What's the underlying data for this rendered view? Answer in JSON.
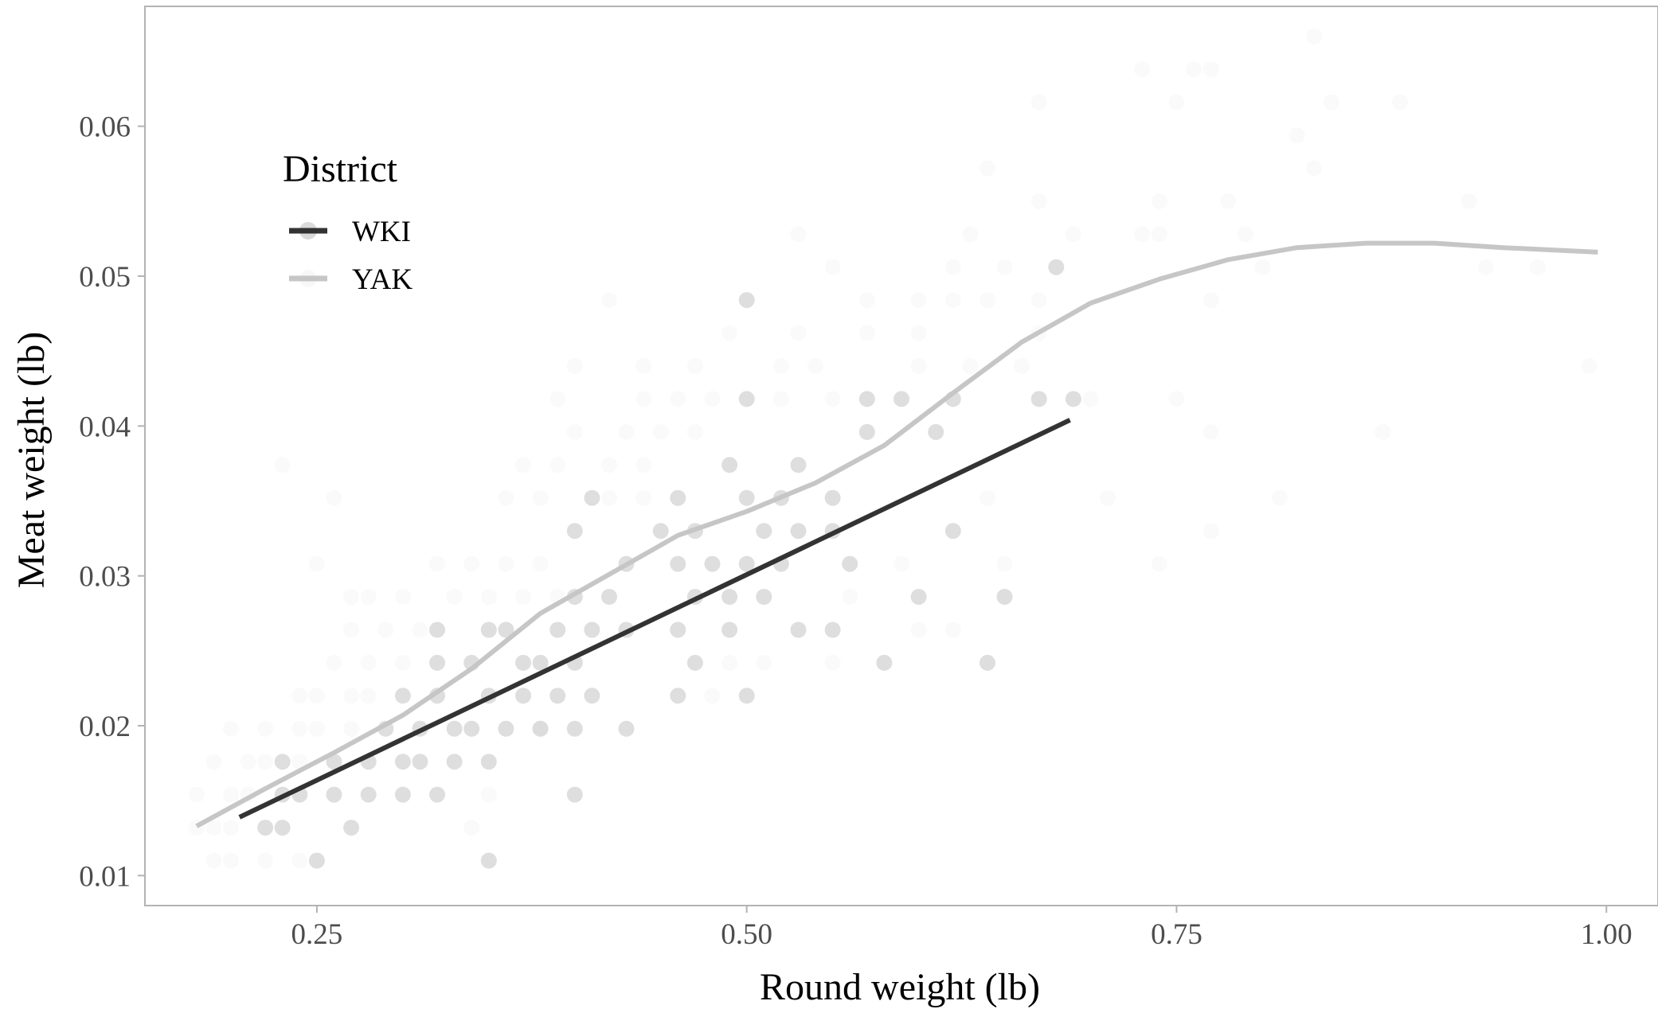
{
  "chart_data": {
    "type": "scatter",
    "xlabel": "Round weight (lb)",
    "ylabel": "Meat weight (lb)",
    "xlim": [
      0.15,
      1.03
    ],
    "ylim": [
      0.008,
      0.068
    ],
    "x_ticks": [
      0.25,
      0.5,
      0.75,
      1.0
    ],
    "x_tick_labels": [
      "0.25",
      "0.50",
      "0.75",
      "1.00"
    ],
    "y_ticks": [
      0.01,
      0.02,
      0.03,
      0.04,
      0.05,
      0.06
    ],
    "y_tick_labels": [
      "0.01",
      "0.02",
      "0.03",
      "0.04",
      "0.05",
      "0.06"
    ],
    "grid": false,
    "legend": {
      "title": "District",
      "position": "top-left"
    },
    "colors": {
      "WKI": "#333333",
      "YAK": "#c6c6c6"
    },
    "series": [
      {
        "name": "WKI",
        "points": [
          [
            0.22,
            0.0132
          ],
          [
            0.23,
            0.0132
          ],
          [
            0.25,
            0.011
          ],
          [
            0.27,
            0.0132
          ],
          [
            0.23,
            0.0154
          ],
          [
            0.24,
            0.0154
          ],
          [
            0.26,
            0.0154
          ],
          [
            0.28,
            0.0154
          ],
          [
            0.3,
            0.0154
          ],
          [
            0.32,
            0.0154
          ],
          [
            0.23,
            0.0176
          ],
          [
            0.26,
            0.0176
          ],
          [
            0.28,
            0.0176
          ],
          [
            0.3,
            0.0176
          ],
          [
            0.31,
            0.0176
          ],
          [
            0.33,
            0.0176
          ],
          [
            0.35,
            0.0176
          ],
          [
            0.29,
            0.0198
          ],
          [
            0.31,
            0.0198
          ],
          [
            0.33,
            0.0198
          ],
          [
            0.34,
            0.0198
          ],
          [
            0.36,
            0.0198
          ],
          [
            0.38,
            0.0198
          ],
          [
            0.4,
            0.0198
          ],
          [
            0.43,
            0.0198
          ],
          [
            0.3,
            0.022
          ],
          [
            0.32,
            0.022
          ],
          [
            0.35,
            0.022
          ],
          [
            0.37,
            0.022
          ],
          [
            0.39,
            0.022
          ],
          [
            0.41,
            0.022
          ],
          [
            0.46,
            0.022
          ],
          [
            0.5,
            0.022
          ],
          [
            0.32,
            0.0242
          ],
          [
            0.34,
            0.0242
          ],
          [
            0.37,
            0.0242
          ],
          [
            0.38,
            0.0242
          ],
          [
            0.4,
            0.0242
          ],
          [
            0.47,
            0.0242
          ],
          [
            0.58,
            0.0242
          ],
          [
            0.64,
            0.0242
          ],
          [
            0.32,
            0.0264
          ],
          [
            0.35,
            0.0264
          ],
          [
            0.36,
            0.0264
          ],
          [
            0.39,
            0.0264
          ],
          [
            0.41,
            0.0264
          ],
          [
            0.43,
            0.0264
          ],
          [
            0.46,
            0.0264
          ],
          [
            0.49,
            0.0264
          ],
          [
            0.53,
            0.0264
          ],
          [
            0.55,
            0.0264
          ],
          [
            0.42,
            0.0286
          ],
          [
            0.47,
            0.0286
          ],
          [
            0.49,
            0.0286
          ],
          [
            0.51,
            0.0286
          ],
          [
            0.65,
            0.0286
          ],
          [
            0.43,
            0.0308
          ],
          [
            0.46,
            0.0308
          ],
          [
            0.48,
            0.0308
          ],
          [
            0.5,
            0.0308
          ],
          [
            0.52,
            0.0308
          ],
          [
            0.56,
            0.0308
          ],
          [
            0.4,
            0.033
          ],
          [
            0.45,
            0.033
          ],
          [
            0.47,
            0.033
          ],
          [
            0.51,
            0.033
          ],
          [
            0.53,
            0.033
          ],
          [
            0.55,
            0.033
          ],
          [
            0.62,
            0.033
          ],
          [
            0.41,
            0.0352
          ],
          [
            0.46,
            0.0352
          ],
          [
            0.5,
            0.0352
          ],
          [
            0.52,
            0.0352
          ],
          [
            0.55,
            0.0352
          ],
          [
            0.49,
            0.0374
          ],
          [
            0.53,
            0.0374
          ],
          [
            0.57,
            0.0396
          ],
          [
            0.61,
            0.0396
          ],
          [
            0.5,
            0.0418
          ],
          [
            0.57,
            0.0418
          ],
          [
            0.59,
            0.0418
          ],
          [
            0.62,
            0.0418
          ],
          [
            0.67,
            0.0418
          ],
          [
            0.69,
            0.0418
          ],
          [
            0.68,
            0.0506
          ],
          [
            0.5,
            0.0484
          ],
          [
            0.35,
            0.011
          ],
          [
            0.4,
            0.0154
          ],
          [
            0.4,
            0.0286
          ],
          [
            0.6,
            0.0286
          ]
        ]
      },
      {
        "name": "YAK",
        "points": [
          [
            0.18,
            0.0132
          ],
          [
            0.19,
            0.0132
          ],
          [
            0.2,
            0.0132
          ],
          [
            0.19,
            0.011
          ],
          [
            0.2,
            0.011
          ],
          [
            0.22,
            0.011
          ],
          [
            0.24,
            0.011
          ],
          [
            0.18,
            0.0154
          ],
          [
            0.2,
            0.0154
          ],
          [
            0.21,
            0.0154
          ],
          [
            0.19,
            0.0176
          ],
          [
            0.21,
            0.0176
          ],
          [
            0.22,
            0.0176
          ],
          [
            0.24,
            0.0176
          ],
          [
            0.2,
            0.0198
          ],
          [
            0.22,
            0.0198
          ],
          [
            0.24,
            0.0198
          ],
          [
            0.25,
            0.0198
          ],
          [
            0.27,
            0.0198
          ],
          [
            0.24,
            0.022
          ],
          [
            0.25,
            0.022
          ],
          [
            0.27,
            0.022
          ],
          [
            0.28,
            0.022
          ],
          [
            0.26,
            0.0242
          ],
          [
            0.28,
            0.0242
          ],
          [
            0.3,
            0.0242
          ],
          [
            0.29,
            0.0264
          ],
          [
            0.31,
            0.0264
          ],
          [
            0.27,
            0.0286
          ],
          [
            0.28,
            0.0286
          ],
          [
            0.3,
            0.0286
          ],
          [
            0.33,
            0.0286
          ],
          [
            0.35,
            0.0286
          ],
          [
            0.37,
            0.0286
          ],
          [
            0.39,
            0.0286
          ],
          [
            0.25,
            0.0308
          ],
          [
            0.32,
            0.0308
          ],
          [
            0.34,
            0.0308
          ],
          [
            0.36,
            0.0308
          ],
          [
            0.38,
            0.0308
          ],
          [
            0.26,
            0.0352
          ],
          [
            0.36,
            0.0352
          ],
          [
            0.38,
            0.0352
          ],
          [
            0.42,
            0.0352
          ],
          [
            0.44,
            0.0352
          ],
          [
            0.23,
            0.0374
          ],
          [
            0.37,
            0.0374
          ],
          [
            0.39,
            0.0374
          ],
          [
            0.42,
            0.0374
          ],
          [
            0.44,
            0.0374
          ],
          [
            0.4,
            0.0396
          ],
          [
            0.43,
            0.0396
          ],
          [
            0.45,
            0.0396
          ],
          [
            0.47,
            0.0396
          ],
          [
            0.39,
            0.0418
          ],
          [
            0.44,
            0.0418
          ],
          [
            0.46,
            0.0418
          ],
          [
            0.48,
            0.0418
          ],
          [
            0.52,
            0.0418
          ],
          [
            0.55,
            0.0418
          ],
          [
            0.4,
            0.044
          ],
          [
            0.44,
            0.044
          ],
          [
            0.47,
            0.044
          ],
          [
            0.52,
            0.044
          ],
          [
            0.54,
            0.044
          ],
          [
            0.6,
            0.044
          ],
          [
            0.63,
            0.044
          ],
          [
            0.66,
            0.044
          ],
          [
            0.49,
            0.0462
          ],
          [
            0.53,
            0.0462
          ],
          [
            0.57,
            0.0462
          ],
          [
            0.6,
            0.0462
          ],
          [
            0.67,
            0.0462
          ],
          [
            0.42,
            0.0484
          ],
          [
            0.57,
            0.0484
          ],
          [
            0.6,
            0.0484
          ],
          [
            0.62,
            0.0484
          ],
          [
            0.64,
            0.0484
          ],
          [
            0.67,
            0.0484
          ],
          [
            0.77,
            0.0484
          ],
          [
            0.55,
            0.0506
          ],
          [
            0.62,
            0.0506
          ],
          [
            0.65,
            0.0506
          ],
          [
            0.8,
            0.0506
          ],
          [
            0.93,
            0.0506
          ],
          [
            0.96,
            0.0506
          ],
          [
            0.53,
            0.0528
          ],
          [
            0.63,
            0.0528
          ],
          [
            0.69,
            0.0528
          ],
          [
            0.73,
            0.0528
          ],
          [
            0.74,
            0.0528
          ],
          [
            0.79,
            0.0528
          ],
          [
            0.67,
            0.055
          ],
          [
            0.74,
            0.055
          ],
          [
            0.78,
            0.055
          ],
          [
            0.92,
            0.055
          ],
          [
            0.64,
            0.0572
          ],
          [
            0.83,
            0.0572
          ],
          [
            0.82,
            0.0594
          ],
          [
            0.67,
            0.0616
          ],
          [
            0.75,
            0.0616
          ],
          [
            0.84,
            0.0616
          ],
          [
            0.88,
            0.0616
          ],
          [
            0.73,
            0.0638
          ],
          [
            0.76,
            0.0638
          ],
          [
            0.77,
            0.0638
          ],
          [
            0.83,
            0.066
          ],
          [
            0.99,
            0.044
          ],
          [
            0.7,
            0.0418
          ],
          [
            0.75,
            0.0418
          ],
          [
            0.77,
            0.0396
          ],
          [
            0.87,
            0.0396
          ],
          [
            0.64,
            0.0352
          ],
          [
            0.71,
            0.0352
          ],
          [
            0.81,
            0.0352
          ],
          [
            0.77,
            0.033
          ],
          [
            0.74,
            0.0308
          ],
          [
            0.65,
            0.0308
          ],
          [
            0.59,
            0.0308
          ],
          [
            0.6,
            0.0264
          ],
          [
            0.62,
            0.0264
          ],
          [
            0.56,
            0.0286
          ],
          [
            0.48,
            0.022
          ],
          [
            0.38,
            0.0198
          ],
          [
            0.35,
            0.0154
          ],
          [
            0.34,
            0.0132
          ],
          [
            0.27,
            0.0264
          ],
          [
            0.49,
            0.0242
          ],
          [
            0.51,
            0.0242
          ],
          [
            0.55,
            0.0242
          ]
        ]
      }
    ],
    "fit_lines": [
      {
        "name": "WKI",
        "x": [
          0.205,
          0.688
        ],
        "y": [
          0.0139,
          0.0404
        ]
      },
      {
        "name": "YAK",
        "x": [
          0.18,
          0.22,
          0.26,
          0.3,
          0.34,
          0.38,
          0.42,
          0.46,
          0.5,
          0.54,
          0.58,
          0.62,
          0.66,
          0.7,
          0.74,
          0.78,
          0.82,
          0.86,
          0.9,
          0.94,
          0.995
        ],
        "y": [
          0.0133,
          0.0158,
          0.0182,
          0.0207,
          0.0238,
          0.0275,
          0.0301,
          0.0327,
          0.0343,
          0.0362,
          0.0387,
          0.0422,
          0.0456,
          0.0482,
          0.0498,
          0.0511,
          0.0519,
          0.0522,
          0.0522,
          0.0519,
          0.0516
        ]
      }
    ]
  }
}
